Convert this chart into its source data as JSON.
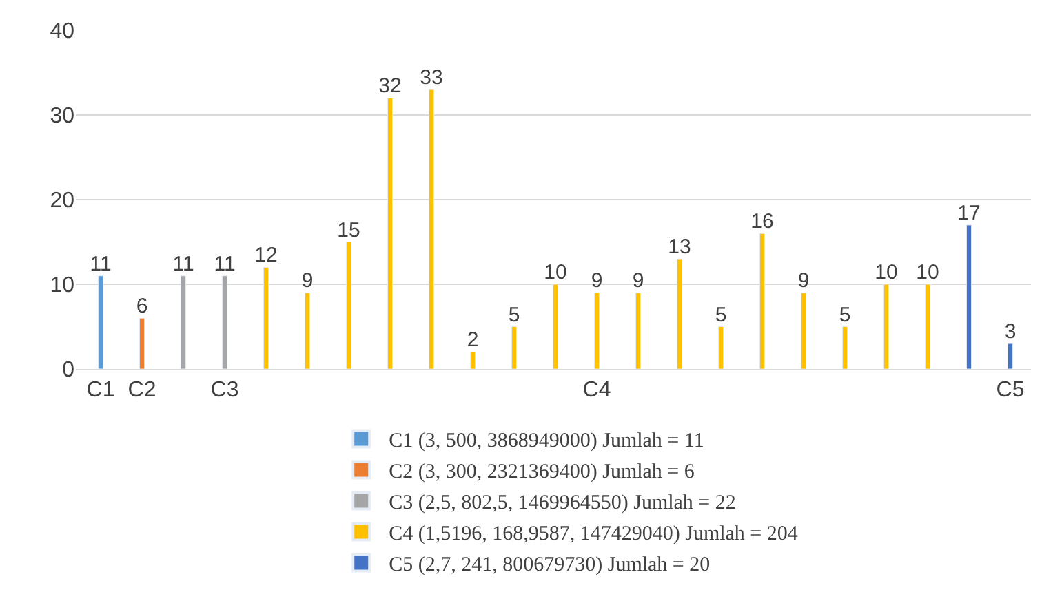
{
  "chart_data": {
    "type": "bar",
    "categories": [
      "C1",
      "C2",
      null,
      "C3",
      null,
      null,
      null,
      null,
      null,
      null,
      null,
      null,
      "C4",
      null,
      null,
      null,
      null,
      null,
      null,
      null,
      null,
      null,
      "C5"
    ],
    "series": [
      {
        "name": "C1 (3, 500, 3868949000) Jumlah = 11",
        "color": "#5b9bd5",
        "values": [
          11,
          null,
          null,
          null,
          null,
          null,
          null,
          null,
          null,
          null,
          null,
          null,
          null,
          null,
          null,
          null,
          null,
          null,
          null,
          null,
          null,
          null,
          null
        ]
      },
      {
        "name": "C2 (3, 300, 2321369400) Jumlah = 6",
        "color": "#ed7d31",
        "values": [
          null,
          6,
          null,
          null,
          null,
          null,
          null,
          null,
          null,
          null,
          null,
          null,
          null,
          null,
          null,
          null,
          null,
          null,
          null,
          null,
          null,
          null,
          null
        ]
      },
      {
        "name": "C3 (2,5, 802,5, 1469964550) Jumlah = 22",
        "color": "#a5a5a5",
        "values": [
          null,
          null,
          11,
          11,
          null,
          null,
          null,
          null,
          null,
          null,
          null,
          null,
          null,
          null,
          null,
          null,
          null,
          null,
          null,
          null,
          null,
          null,
          null
        ]
      },
      {
        "name": "C4 (1,5196, 168,9587, 147429040) Jumlah = 204",
        "color": "#ffc000",
        "values": [
          null,
          null,
          null,
          null,
          12,
          9,
          15,
          32,
          33,
          2,
          5,
          10,
          9,
          9,
          13,
          5,
          16,
          9,
          5,
          10,
          10,
          null,
          null
        ]
      },
      {
        "name": "C5 (2,7, 241, 800679730) Jumlah = 20",
        "color": "#4472c4",
        "values": [
          null,
          null,
          null,
          null,
          null,
          null,
          null,
          null,
          null,
          null,
          null,
          null,
          null,
          null,
          null,
          null,
          null,
          null,
          null,
          null,
          null,
          17,
          3
        ]
      }
    ],
    "ylim": [
      0,
      40
    ],
    "yticks": [
      0,
      10,
      20,
      30,
      40
    ],
    "grid": "y",
    "legend": "bottom",
    "data_labels": true
  }
}
